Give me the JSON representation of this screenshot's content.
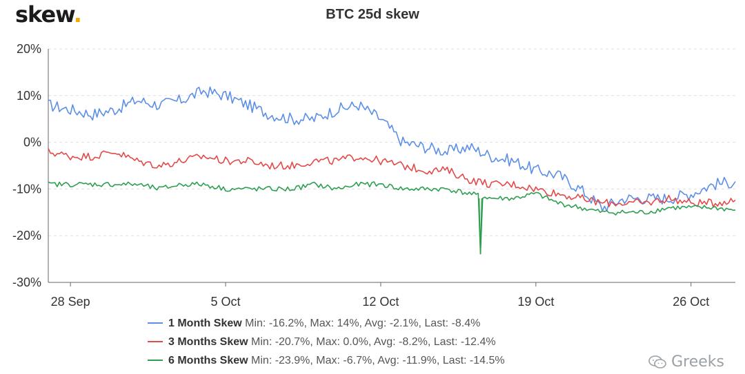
{
  "logo": {
    "text": "skew",
    "dot": "."
  },
  "watermark": {
    "icon": "wechat-icon",
    "text": "Greeks"
  },
  "chart_data": {
    "type": "line",
    "title": "BTC 25d skew",
    "xlabel": "",
    "ylabel": "",
    "x_start": "2020-09-27",
    "x_end": "2020-10-28",
    "x_ticks": [
      {
        "label": "28 Sep",
        "date": "2020-09-28"
      },
      {
        "label": "5 Oct",
        "date": "2020-10-05"
      },
      {
        "label": "12 Oct",
        "date": "2020-10-12"
      },
      {
        "label": "19 Oct",
        "date": "2020-10-19"
      },
      {
        "label": "26 Oct",
        "date": "2020-10-26"
      }
    ],
    "y_ticks": [
      "20%",
      "10%",
      "0%",
      "-10%",
      "-20%",
      "-30%"
    ],
    "ylim": [
      -30,
      20
    ],
    "grid": true,
    "legend_position": "bottom",
    "series": [
      {
        "name": "1 Month Skew",
        "color": "#5b8ee6",
        "stats": "Min: -16.2%, Max: 14%, Avg: -2.1%, Last: -8.4%",
        "points": [
          [
            "2020-09-27",
            8
          ],
          [
            "2020-09-28",
            7
          ],
          [
            "2020-09-29",
            6
          ],
          [
            "2020-09-30",
            7
          ],
          [
            "2020-10-01",
            9
          ],
          [
            "2020-10-02",
            8
          ],
          [
            "2020-10-03",
            9
          ],
          [
            "2020-10-04",
            11
          ],
          [
            "2020-10-05",
            10
          ],
          [
            "2020-10-06",
            8
          ],
          [
            "2020-10-07",
            6
          ],
          [
            "2020-10-08",
            5
          ],
          [
            "2020-10-09",
            5
          ],
          [
            "2020-10-10",
            7
          ],
          [
            "2020-10-11",
            8
          ],
          [
            "2020-10-12",
            5
          ],
          [
            "2020-10-13",
            0
          ],
          [
            "2020-10-14",
            -1
          ],
          [
            "2020-10-15",
            -2
          ],
          [
            "2020-10-16",
            -1
          ],
          [
            "2020-10-17",
            -3
          ],
          [
            "2020-10-18",
            -4
          ],
          [
            "2020-10-19",
            -6
          ],
          [
            "2020-10-20",
            -7
          ],
          [
            "2020-10-21",
            -10
          ],
          [
            "2020-10-22",
            -14
          ],
          [
            "2020-10-23",
            -12
          ],
          [
            "2020-10-24",
            -12
          ],
          [
            "2020-10-25",
            -12
          ],
          [
            "2020-10-26",
            -11
          ],
          [
            "2020-10-27",
            -9
          ],
          [
            "2020-10-28",
            -8.4
          ]
        ]
      },
      {
        "name": "3 Months Skew",
        "color": "#e54848",
        "stats": "Min: -20.7%, Max: 0.0%, Avg: -8.2%, Last: -12.4%",
        "points": [
          [
            "2020-09-27",
            -2
          ],
          [
            "2020-09-28",
            -3
          ],
          [
            "2020-09-29",
            -3
          ],
          [
            "2020-09-30",
            -2
          ],
          [
            "2020-10-01",
            -4
          ],
          [
            "2020-10-02",
            -5
          ],
          [
            "2020-10-03",
            -4
          ],
          [
            "2020-10-04",
            -3
          ],
          [
            "2020-10-05",
            -4
          ],
          [
            "2020-10-06",
            -4
          ],
          [
            "2020-10-07",
            -5
          ],
          [
            "2020-10-08",
            -5
          ],
          [
            "2020-10-09",
            -4
          ],
          [
            "2020-10-10",
            -4
          ],
          [
            "2020-10-11",
            -3
          ],
          [
            "2020-10-12",
            -4
          ],
          [
            "2020-10-13",
            -5
          ],
          [
            "2020-10-14",
            -6
          ],
          [
            "2020-10-15",
            -6
          ],
          [
            "2020-10-16",
            -8
          ],
          [
            "2020-10-17",
            -9
          ],
          [
            "2020-10-18",
            -9
          ],
          [
            "2020-10-19",
            -10
          ],
          [
            "2020-10-20",
            -11
          ],
          [
            "2020-10-21",
            -12
          ],
          [
            "2020-10-22",
            -13
          ],
          [
            "2020-10-23",
            -13
          ],
          [
            "2020-10-24",
            -13
          ],
          [
            "2020-10-25",
            -12
          ],
          [
            "2020-10-26",
            -13
          ],
          [
            "2020-10-27",
            -13
          ],
          [
            "2020-10-28",
            -12.4
          ]
        ]
      },
      {
        "name": "6 Months Skew",
        "color": "#2e9e4f",
        "stats": "Min: -23.9%, Max: -6.7%, Avg: -11.9%, Last: -14.5%",
        "points": [
          [
            "2020-09-27",
            -9
          ],
          [
            "2020-09-28",
            -9
          ],
          [
            "2020-09-29",
            -9
          ],
          [
            "2020-09-30",
            -9
          ],
          [
            "2020-10-01",
            -9
          ],
          [
            "2020-10-02",
            -10
          ],
          [
            "2020-10-03",
            -9
          ],
          [
            "2020-10-04",
            -9
          ],
          [
            "2020-10-05",
            -10
          ],
          [
            "2020-10-06",
            -10
          ],
          [
            "2020-10-07",
            -10
          ],
          [
            "2020-10-08",
            -10
          ],
          [
            "2020-10-09",
            -9
          ],
          [
            "2020-10-10",
            -10
          ],
          [
            "2020-10-11",
            -9
          ],
          [
            "2020-10-12",
            -9
          ],
          [
            "2020-10-13",
            -10
          ],
          [
            "2020-10-14",
            -10
          ],
          [
            "2020-10-15",
            -10
          ],
          [
            "2020-10-16",
            -11
          ],
          [
            "2020-10-17",
            -12
          ],
          [
            "2020-10-18",
            -12
          ],
          [
            "2020-10-19",
            -11
          ],
          [
            "2020-10-20",
            -13
          ],
          [
            "2020-10-21",
            -14
          ],
          [
            "2020-10-22",
            -15
          ],
          [
            "2020-10-23",
            -15
          ],
          [
            "2020-10-24",
            -15
          ],
          [
            "2020-10-25",
            -14
          ],
          [
            "2020-10-26",
            -14
          ],
          [
            "2020-10-27",
            -14
          ],
          [
            "2020-10-28",
            -14.5
          ]
        ]
      }
    ],
    "annotations": [
      {
        "series": "6 Months Skew",
        "date": "2020-10-16T12:00",
        "value": -23.9,
        "note": "spike minimum"
      }
    ]
  }
}
